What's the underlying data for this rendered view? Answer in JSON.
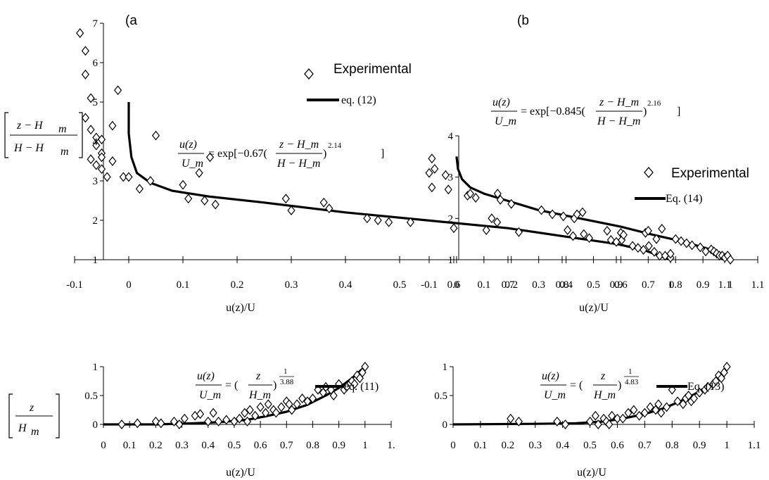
{
  "chart_data": [
    {
      "type": "scatter",
      "panel_label": "(a",
      "xlabel": "u(z)/U",
      "ylabel": "z - Hm / H - Hm",
      "xlim": [
        -0.1,
        1.1
      ],
      "ylim": [
        1,
        7
      ],
      "x_ticks": [
        "-0.1",
        "0",
        "0.1",
        "0.2",
        "0.3",
        "0.4",
        "0.5",
        "0.6",
        "0.7",
        "0.8",
        "0.9",
        "1",
        "1.1"
      ],
      "y_ticks": [
        "1",
        "2",
        "3",
        "4",
        "5",
        "6",
        "7"
      ],
      "legend": {
        "scatter": "Experimental",
        "line": "eq. (12)"
      },
      "equation": {
        "lhs_num": "u(z)",
        "lhs_den": "U_m",
        "rhs_pre": "= exp[−0.67(",
        "rhs_num": "z − H_m",
        "rhs_den": "H − H_m",
        "rhs_exp": "2.14",
        "rhs_post": "]"
      },
      "series": [
        {
          "kind": "scatter",
          "name": "Experimental",
          "x": [
            -0.09,
            -0.08,
            -0.08,
            -0.07,
            -0.08,
            -0.07,
            -0.06,
            -0.05,
            -0.06,
            -0.05,
            -0.07,
            -0.06,
            -0.05,
            -0.04,
            -0.05,
            -0.03,
            -0.02,
            -0.03,
            -0.01,
            0.0,
            0.02,
            0.04,
            0.05,
            0.1,
            0.11,
            0.13,
            0.14,
            0.15,
            0.16,
            0.29,
            0.3,
            0.36,
            0.37,
            0.44,
            0.46,
            0.48,
            0.52,
            0.6,
            0.66,
            0.67,
            0.68,
            0.72,
            0.81,
            0.82,
            0.84,
            0.85,
            0.89,
            0.9,
            0.91,
            0.93,
            0.94,
            0.95,
            0.96,
            0.97,
            0.98,
            0.99,
            1.0,
            1.0
          ],
          "y": [
            6.75,
            6.3,
            5.7,
            5.1,
            4.6,
            4.3,
            4.1,
            4.05,
            3.9,
            3.7,
            3.55,
            3.4,
            3.3,
            3.1,
            3.6,
            3.5,
            5.3,
            4.4,
            3.1,
            3.1,
            2.8,
            3.0,
            4.15,
            2.9,
            2.55,
            3.2,
            2.5,
            3.6,
            2.4,
            2.55,
            2.25,
            2.45,
            2.3,
            2.05,
            2.0,
            1.95,
            1.95,
            1.8,
            1.75,
            2.05,
            1.95,
            1.7,
            1.75,
            1.6,
            1.65,
            1.55,
            1.5,
            1.45,
            1.5,
            1.35,
            1.3,
            1.25,
            1.35,
            1.2,
            1.1,
            1.1,
            1.05,
            1.15
          ]
        },
        {
          "kind": "line",
          "name": "eq. (12)",
          "x": [
            0.0,
            0.0,
            0.005,
            0.015,
            0.04,
            0.08,
            0.15,
            0.25,
            0.4,
            0.55,
            0.7,
            0.8,
            0.9,
            0.95,
            1.0
          ],
          "y": [
            5.0,
            4.2,
            3.6,
            3.2,
            2.95,
            2.75,
            2.6,
            2.45,
            2.2,
            2.0,
            1.8,
            1.6,
            1.4,
            1.25,
            1.0
          ]
        }
      ]
    },
    {
      "type": "scatter",
      "panel_label": "(b",
      "xlabel": "u(z)/U",
      "xlim": [
        -0.1,
        1.1
      ],
      "ylim": [
        1,
        4
      ],
      "x_ticks": [
        "-0.1",
        "0",
        "0.1",
        "0.2",
        "0.3",
        "0.4",
        "0.5",
        "0.6",
        "0.7",
        "0.8",
        "0.9",
        "1",
        "1.1"
      ],
      "y_ticks": [
        "1",
        "2",
        "3",
        "4"
      ],
      "legend": {
        "scatter": "Experimental",
        "line": "Eq. (14)"
      },
      "equation": {
        "lhs_num": "u(z)",
        "lhs_den": "U_m",
        "rhs_pre": "= exp[−0.845(",
        "rhs_num": "z − H_m",
        "rhs_den": "H − H_m",
        "rhs_exp": "2.16",
        "rhs_post": "]"
      },
      "series": [
        {
          "kind": "scatter",
          "name": "Experimental",
          "x": [
            -0.09,
            -0.1,
            -0.08,
            -0.09,
            -0.04,
            -0.03,
            0.04,
            0.05,
            0.07,
            0.15,
            0.16,
            0.2,
            0.31,
            0.35,
            0.39,
            0.43,
            0.44,
            0.46,
            0.55,
            0.6,
            0.61,
            0.69,
            0.7,
            0.73,
            0.75,
            0.8,
            0.82,
            0.84,
            0.86,
            0.89,
            0.91,
            0.93,
            0.94,
            0.95,
            0.96,
            0.97,
            0.98,
            0.99,
            1.0
          ],
          "y": [
            3.45,
            3.1,
            3.2,
            2.75,
            3.05,
            2.7,
            2.55,
            2.6,
            2.5,
            2.6,
            2.45,
            2.35,
            2.2,
            2.1,
            2.05,
            2.0,
            2.1,
            2.15,
            1.7,
            1.65,
            1.6,
            1.65,
            1.7,
            1.5,
            1.75,
            1.5,
            1.45,
            1.4,
            1.35,
            1.3,
            1.2,
            1.25,
            1.2,
            1.15,
            1.1,
            1.1,
            1.05,
            1.1,
            1.0
          ]
        },
        {
          "kind": "line",
          "name": "Eq. (14)",
          "x": [
            0.0,
            0.005,
            0.02,
            0.05,
            0.1,
            0.2,
            0.3,
            0.45,
            0.6,
            0.72,
            0.82,
            0.9,
            0.95,
            1.0
          ],
          "y": [
            3.5,
            3.2,
            2.95,
            2.75,
            2.6,
            2.4,
            2.2,
            2.0,
            1.8,
            1.6,
            1.45,
            1.3,
            1.2,
            1.0
          ]
        }
      ]
    },
    {
      "type": "scatter",
      "ylabel": "z / Hm",
      "xlabel": "u(z)/U",
      "xlim": [
        0,
        1.1
      ],
      "ylim": [
        0,
        1
      ],
      "x_ticks": [
        "0",
        "0.1",
        "0.2",
        "0.3",
        "0.4",
        "0.5",
        "0.6",
        "0.7",
        "0.8",
        "0.9",
        "1",
        "1."
      ],
      "y_ticks": [
        "0",
        "0.5",
        "1"
      ],
      "legend": {
        "line": "eq. (11)"
      },
      "equation": {
        "lhs_num": "u(z)",
        "lhs_den": "U_m",
        "rhs_pre": "= (",
        "rhs_num": "z",
        "rhs_den": "H_m",
        "rhs_exp_num": "1",
        "rhs_exp_den": "3.88"
      },
      "series": [
        {
          "kind": "scatter",
          "name": "Experimental",
          "x": [
            0.07,
            0.13,
            0.2,
            0.22,
            0.27,
            0.29,
            0.31,
            0.35,
            0.37,
            0.4,
            0.42,
            0.44,
            0.47,
            0.5,
            0.52,
            0.54,
            0.55,
            0.56,
            0.58,
            0.6,
            0.62,
            0.63,
            0.65,
            0.66,
            0.68,
            0.7,
            0.71,
            0.72,
            0.74,
            0.76,
            0.78,
            0.8,
            0.82,
            0.84,
            0.85,
            0.87,
            0.88,
            0.9,
            0.92,
            0.93,
            0.95,
            0.96,
            0.97,
            0.98,
            0.99,
            1.0
          ],
          "y": [
            0.0,
            0.02,
            0.05,
            0.02,
            0.05,
            0.0,
            0.1,
            0.15,
            0.18,
            0.05,
            0.2,
            0.05,
            0.08,
            0.05,
            0.1,
            0.2,
            0.05,
            0.25,
            0.15,
            0.3,
            0.2,
            0.35,
            0.25,
            0.2,
            0.3,
            0.4,
            0.35,
            0.25,
            0.35,
            0.45,
            0.4,
            0.45,
            0.6,
            0.55,
            0.65,
            0.6,
            0.5,
            0.7,
            0.6,
            0.65,
            0.75,
            0.7,
            0.85,
            0.8,
            0.9,
            1.0
          ]
        },
        {
          "kind": "line",
          "name": "eq. (11)",
          "x": [
            0.0,
            0.2,
            0.35,
            0.45,
            0.55,
            0.62,
            0.7,
            0.78,
            0.85,
            0.9,
            0.95,
            1.0
          ],
          "y": [
            0.0,
            0.0,
            0.02,
            0.04,
            0.08,
            0.14,
            0.22,
            0.34,
            0.5,
            0.63,
            0.8,
            1.0
          ]
        }
      ]
    },
    {
      "type": "scatter",
      "xlabel": "u(z)/U",
      "xlim": [
        0,
        1.1
      ],
      "ylim": [
        0,
        1
      ],
      "x_ticks": [
        "0",
        "0.1",
        "0.2",
        "0.3",
        "0.4",
        "0.5",
        "0.6",
        "0.7",
        "0.8",
        "0.9",
        "1",
        "1.1"
      ],
      "y_ticks": [
        "0",
        "0.5",
        "1"
      ],
      "legend": {
        "line": "Eq. (13)"
      },
      "equation": {
        "lhs_num": "u(z)",
        "lhs_den": "U_m",
        "rhs_pre": "= (",
        "rhs_num": "z",
        "rhs_den": "H_m",
        "rhs_exp_num": "1",
        "rhs_exp_den": "4.83"
      },
      "series": [
        {
          "kind": "scatter",
          "name": "Experimental",
          "x": [
            0.21,
            0.24,
            0.38,
            0.41,
            0.5,
            0.52,
            0.53,
            0.55,
            0.56,
            0.57,
            0.58,
            0.6,
            0.62,
            0.64,
            0.66,
            0.68,
            0.7,
            0.72,
            0.74,
            0.75,
            0.76,
            0.78,
            0.8,
            0.82,
            0.84,
            0.85,
            0.86,
            0.87,
            0.88,
            0.9,
            0.92,
            0.93,
            0.95,
            0.96,
            0.97,
            0.98,
            0.99,
            1.0
          ],
          "y": [
            0.1,
            0.05,
            0.05,
            0.0,
            0.05,
            0.15,
            0.0,
            0.1,
            0.05,
            0.0,
            0.15,
            0.1,
            0.1,
            0.2,
            0.25,
            0.15,
            0.2,
            0.3,
            0.25,
            0.35,
            0.2,
            0.3,
            0.6,
            0.4,
            0.35,
            0.45,
            0.5,
            0.4,
            0.45,
            0.55,
            0.6,
            0.65,
            0.7,
            0.75,
            0.85,
            0.8,
            0.9,
            1.0
          ]
        },
        {
          "kind": "line",
          "name": "Eq. (13)",
          "x": [
            0.0,
            0.3,
            0.45,
            0.55,
            0.62,
            0.7,
            0.77,
            0.83,
            0.88,
            0.93,
            0.97,
            1.0
          ],
          "y": [
            0.0,
            0.01,
            0.02,
            0.05,
            0.1,
            0.18,
            0.28,
            0.4,
            0.52,
            0.65,
            0.8,
            1.0
          ]
        }
      ]
    }
  ]
}
